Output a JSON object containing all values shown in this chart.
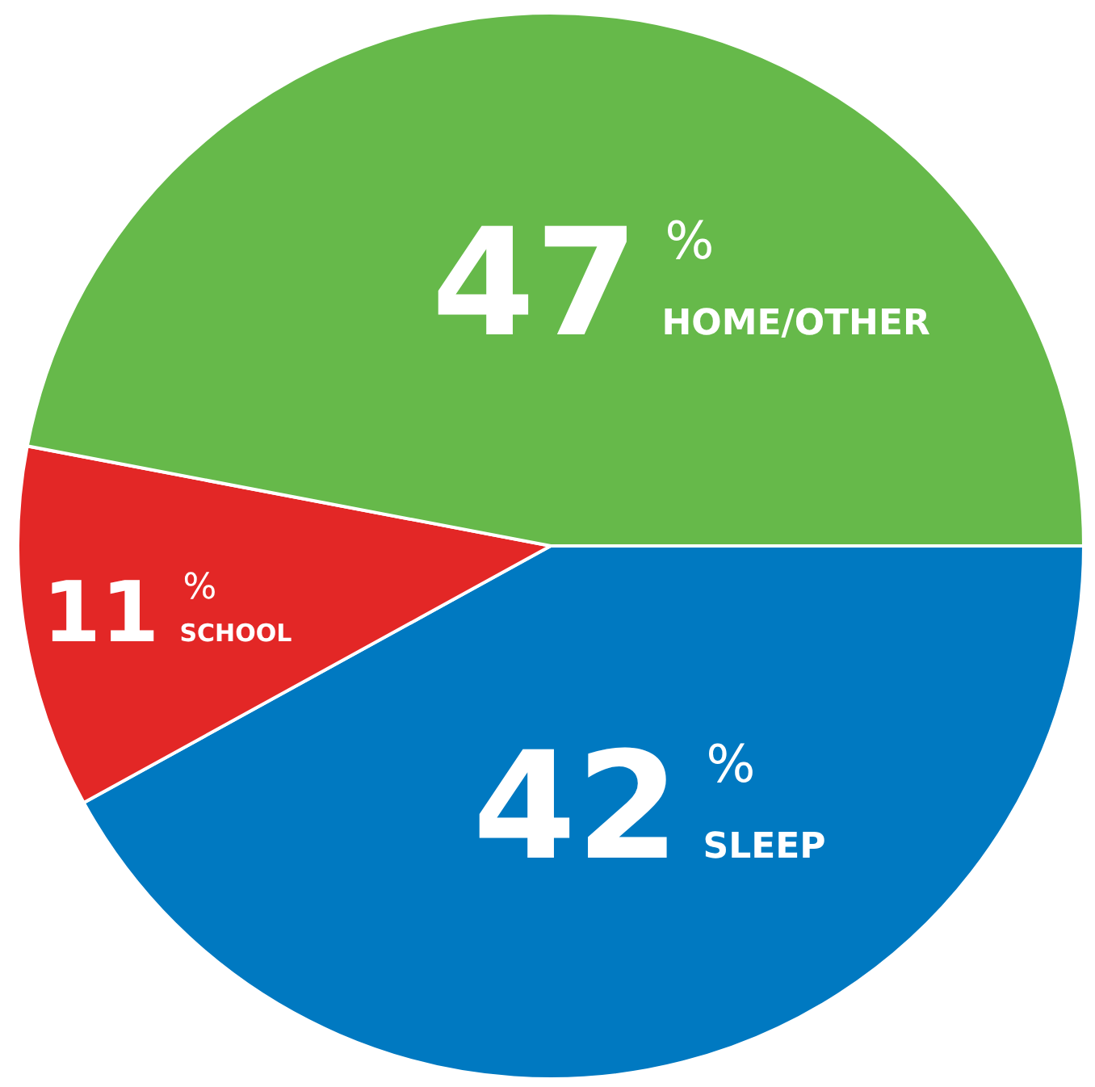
{
  "chart_data": {
    "type": "pie",
    "categories": [
      "SLEEP",
      "SCHOOL",
      "HOME/OTHER"
    ],
    "values": [
      42,
      11,
      47
    ],
    "colors": [
      "#0079c1",
      "#e32726",
      "#66b94a"
    ],
    "value_labels": [
      "42%",
      "11%",
      "47%"
    ]
  }
}
